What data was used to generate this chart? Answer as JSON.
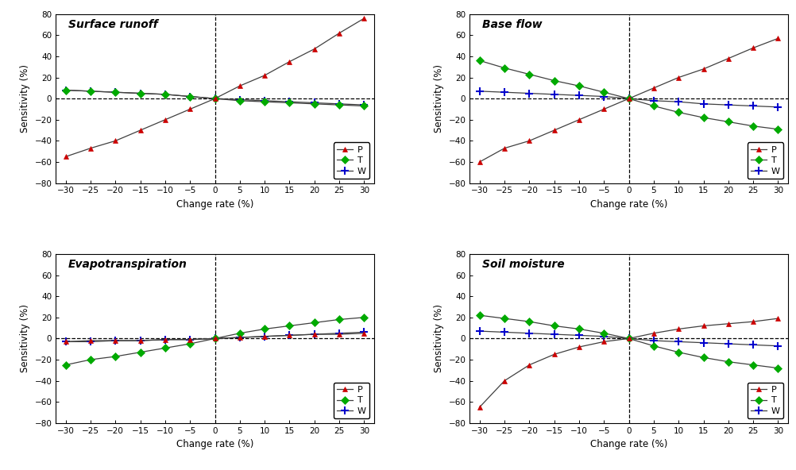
{
  "x": [
    -30,
    -25,
    -20,
    -15,
    -10,
    -5,
    0,
    5,
    10,
    15,
    20,
    25,
    30
  ],
  "panels": [
    {
      "title": "Surface runoff",
      "P": [
        -55,
        -47,
        -40,
        -30,
        -20,
        -10,
        0,
        12,
        22,
        35,
        47,
        62,
        76
      ],
      "T": [
        8,
        7,
        6,
        5,
        4,
        2,
        0,
        -2,
        -3,
        -4,
        -5,
        -6,
        -7
      ],
      "W": [
        8,
        7,
        6,
        5,
        4,
        2,
        0,
        -1,
        -2,
        -3,
        -4,
        -5,
        -6
      ]
    },
    {
      "title": "Base flow",
      "P": [
        -60,
        -47,
        -40,
        -30,
        -20,
        -10,
        0,
        10,
        20,
        28,
        38,
        48,
        57
      ],
      "T": [
        36,
        29,
        23,
        17,
        12,
        6,
        0,
        -7,
        -13,
        -18,
        -22,
        -26,
        -29
      ],
      "W": [
        7,
        6,
        5,
        4,
        3,
        2,
        0,
        -2,
        -3,
        -5,
        -6,
        -7,
        -8
      ]
    },
    {
      "title": "Evapotranspiration",
      "P": [
        -3,
        -2,
        -2,
        -2,
        -1,
        -1,
        0,
        1,
        2,
        3,
        4,
        4,
        5
      ],
      "T": [
        -25,
        -20,
        -17,
        -13,
        -9,
        -5,
        0,
        5,
        9,
        12,
        15,
        18,
        20
      ],
      "W": [
        -3,
        -3,
        -2,
        -2,
        -1,
        -1,
        0,
        1,
        2,
        3,
        4,
        5,
        6
      ]
    },
    {
      "title": "Soil moisture",
      "P": [
        -65,
        -40,
        -25,
        -15,
        -8,
        -3,
        0,
        5,
        9,
        12,
        14,
        16,
        19
      ],
      "T": [
        22,
        19,
        16,
        12,
        9,
        5,
        0,
        -7,
        -13,
        -18,
        -22,
        -25,
        -28
      ],
      "W": [
        7,
        6,
        5,
        4,
        3,
        2,
        0,
        -2,
        -3,
        -4,
        -5,
        -6,
        -7
      ]
    }
  ],
  "colors": {
    "P": "#cc0000",
    "T": "#00aa00",
    "W": "#0000cc"
  },
  "line_color": "#404040",
  "xlabel": "Change rate (%)",
  "ylabel": "Sensitivity (%)",
  "ylim": [
    -80,
    80
  ],
  "yticks": [
    -80,
    -60,
    -40,
    -20,
    0,
    20,
    40,
    60,
    80
  ],
  "xticks": [
    -30,
    -25,
    -20,
    -15,
    -10,
    -5,
    0,
    5,
    10,
    15,
    20,
    25,
    30
  ]
}
